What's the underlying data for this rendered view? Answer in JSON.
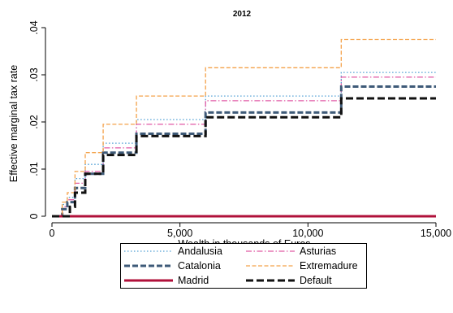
{
  "chart_data": {
    "type": "line",
    "step": true,
    "title": "2012",
    "xlabel": "Wealth in thousands of Euros",
    "ylabel": "Effective marginal tax rate",
    "xlim": [
      0,
      15000
    ],
    "ylim": [
      0,
      0.04
    ],
    "xticks": [
      0,
      5000,
      10000,
      15000
    ],
    "xtick_labels": [
      "0",
      "5,000",
      "10,000",
      "15,000"
    ],
    "yticks": [
      0,
      0.01,
      0.02,
      0.03,
      0.04
    ],
    "ytick_labels": [
      "0",
      ".01",
      ".02",
      ".03",
      ".04"
    ],
    "grid": false,
    "legend_position": "bottom",
    "series": [
      {
        "name": "Andalusia",
        "color": "#4f9fd4",
        "dash": "1.5,2.5",
        "width": 1.3,
        "x": [
          0,
          400,
          600,
          900,
          1300,
          2000,
          3300,
          6000,
          11300,
          15000
        ],
        "y": [
          0,
          0.0025,
          0.004,
          0.008,
          0.011,
          0.0155,
          0.0205,
          0.0255,
          0.0305,
          0.0305
        ]
      },
      {
        "name": "Asturias",
        "color": "#e05aa5",
        "dash": "7,2.5,1.5,2.5",
        "width": 1.3,
        "x": [
          0,
          400,
          600,
          900,
          1300,
          2000,
          3300,
          6000,
          11300,
          15000
        ],
        "y": [
          0,
          0.002,
          0.0035,
          0.007,
          0.0095,
          0.0145,
          0.0195,
          0.0245,
          0.0295,
          0.0295
        ]
      },
      {
        "name": "Catalonia",
        "color": "#3e5a78",
        "dash": "7,3",
        "width": 3,
        "x": [
          0,
          400,
          600,
          900,
          1300,
          2000,
          3300,
          6000,
          11300,
          15000
        ],
        "y": [
          0,
          0.0015,
          0.003,
          0.006,
          0.009,
          0.0135,
          0.0175,
          0.022,
          0.0275,
          0.0275
        ]
      },
      {
        "name": "Extremadure",
        "color": "#f4a24a",
        "dash": "5,2.5",
        "width": 1.3,
        "x": [
          0,
          400,
          600,
          900,
          1300,
          2000,
          3300,
          6000,
          11300,
          15000
        ],
        "y": [
          0,
          0.003,
          0.005,
          0.0095,
          0.0135,
          0.0195,
          0.0255,
          0.0315,
          0.0375,
          0.0375
        ]
      },
      {
        "name": "Madrid",
        "color": "#b0103a",
        "dash": "",
        "width": 3,
        "x": [
          0,
          15000
        ],
        "y": [
          0,
          0
        ]
      },
      {
        "name": "Default",
        "color": "#111111",
        "dash": "9,4",
        "width": 3,
        "x": [
          0,
          700,
          900,
          1300,
          2000,
          3300,
          6000,
          11300,
          15000
        ],
        "y": [
          0,
          0.002,
          0.005,
          0.009,
          0.013,
          0.017,
          0.021,
          0.025,
          0.025
        ]
      }
    ]
  }
}
